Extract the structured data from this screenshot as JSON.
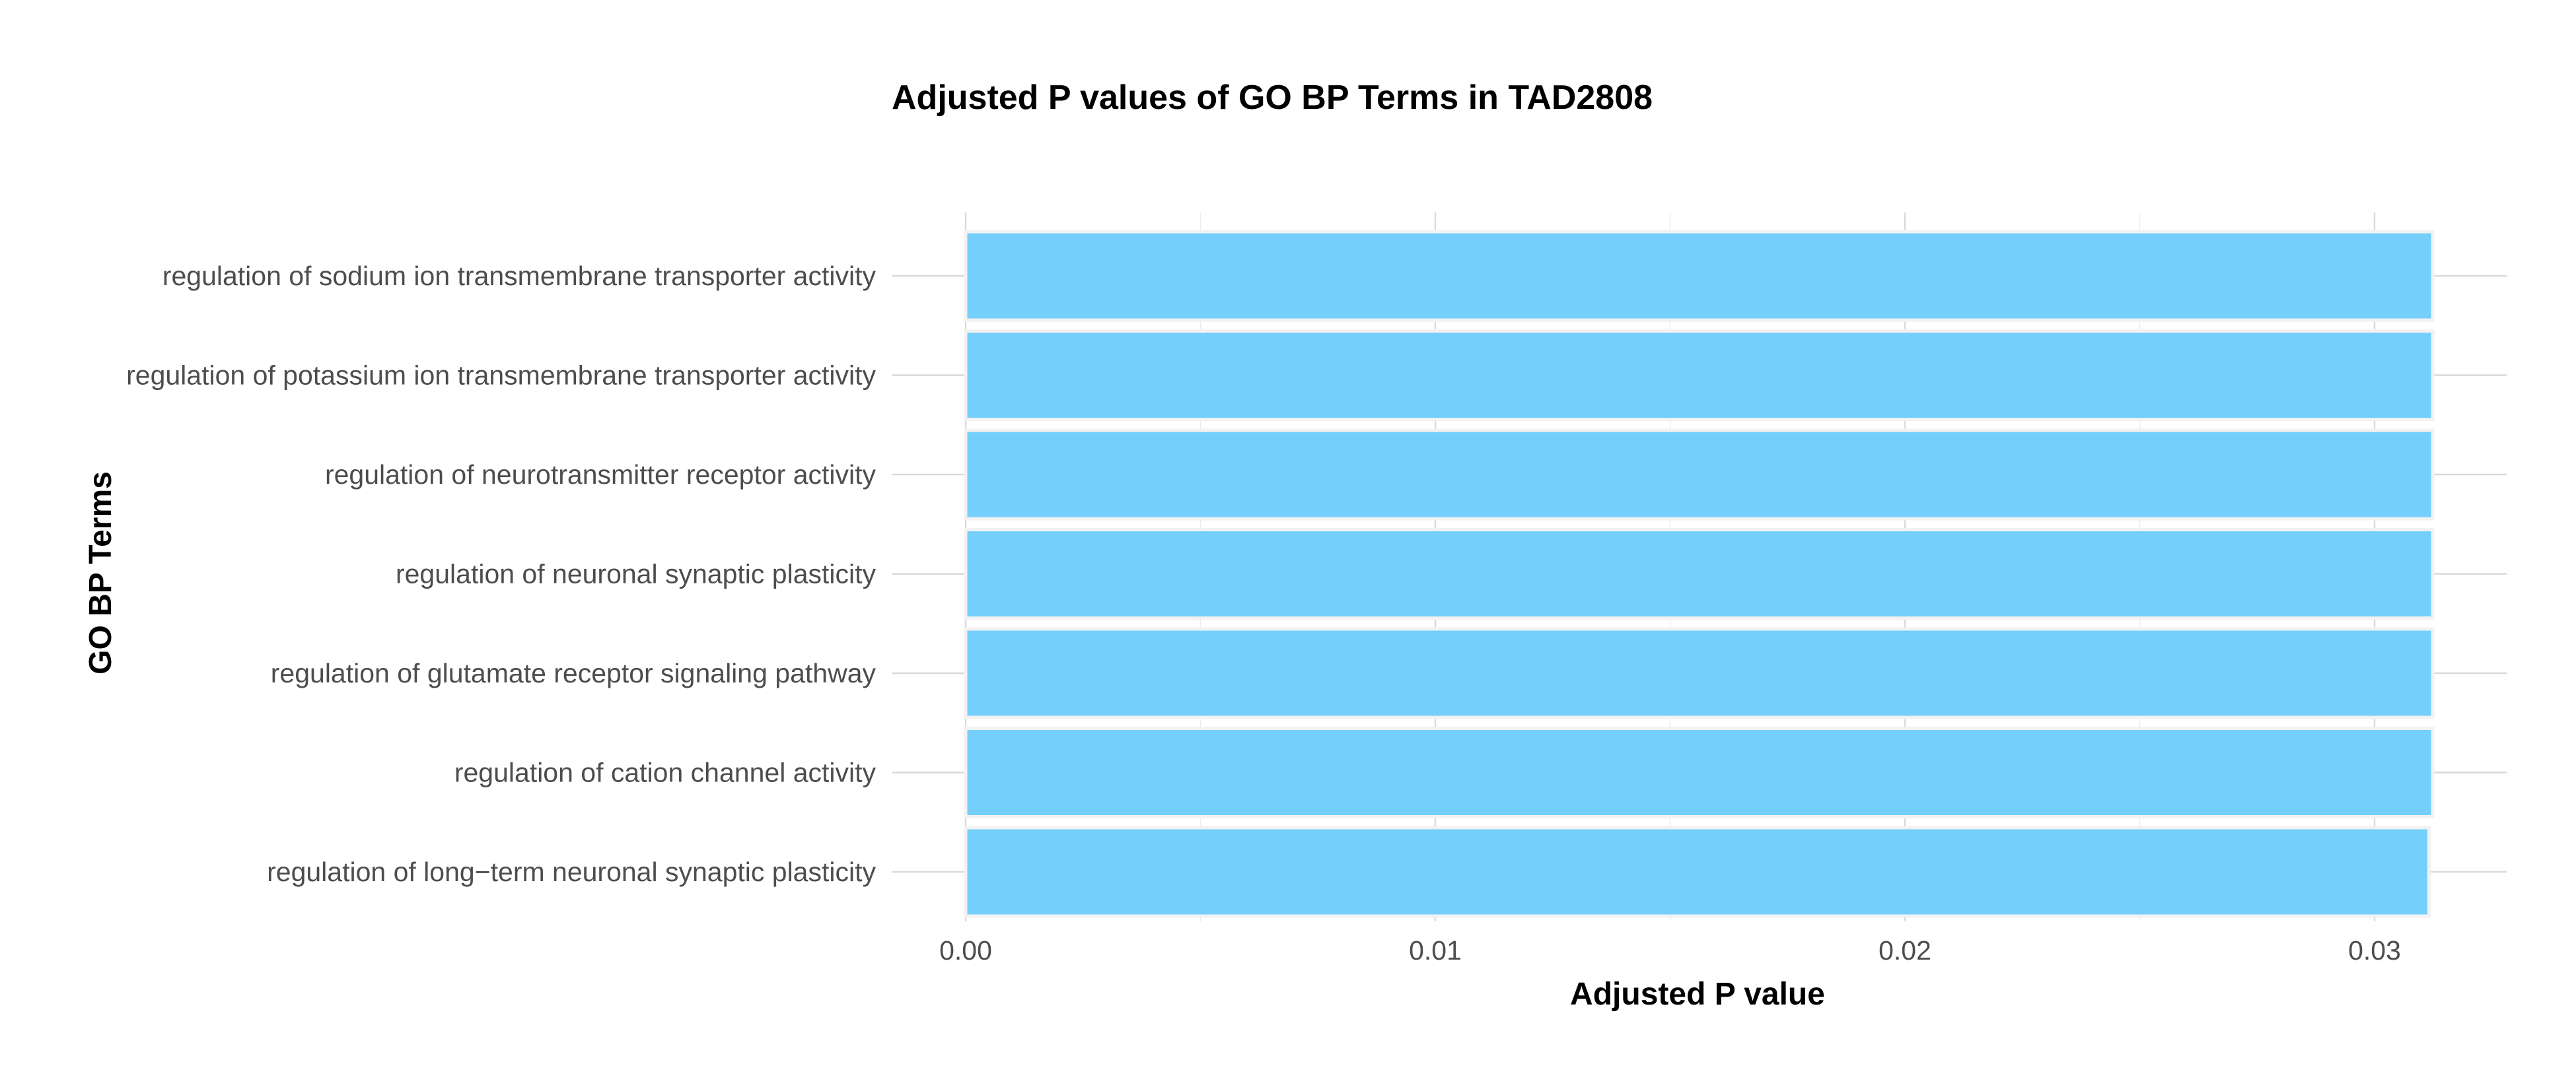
{
  "chart_data": {
    "type": "bar",
    "orientation": "horizontal",
    "title": "Adjusted P values of GO BP Terms in TAD2808",
    "xlabel": "Adjusted P value",
    "ylabel": "GO BP Terms",
    "categories": [
      "regulation of sodium ion transmembrane transporter activity",
      "regulation of potassium ion transmembrane transporter activity",
      "regulation of neurotransmitter receptor activity",
      "regulation of neuronal synaptic plasticity",
      "regulation of glutamate receptor signaling pathway",
      "regulation of cation channel activity",
      "regulation of long−term neuronal synaptic plasticity"
    ],
    "values": [
      0.03124,
      0.03124,
      0.03124,
      0.03124,
      0.03124,
      0.03124,
      0.03116
    ],
    "xticks": [
      0.0,
      0.01,
      0.02,
      0.03
    ],
    "xtick_labels": [
      "0.00",
      "0.01",
      "0.02",
      "0.03"
    ],
    "xlim": [
      0,
      0.0328
    ],
    "grid": true,
    "bar_color": "#75CFFB",
    "bar_outline_color": "#f2f2f2"
  }
}
